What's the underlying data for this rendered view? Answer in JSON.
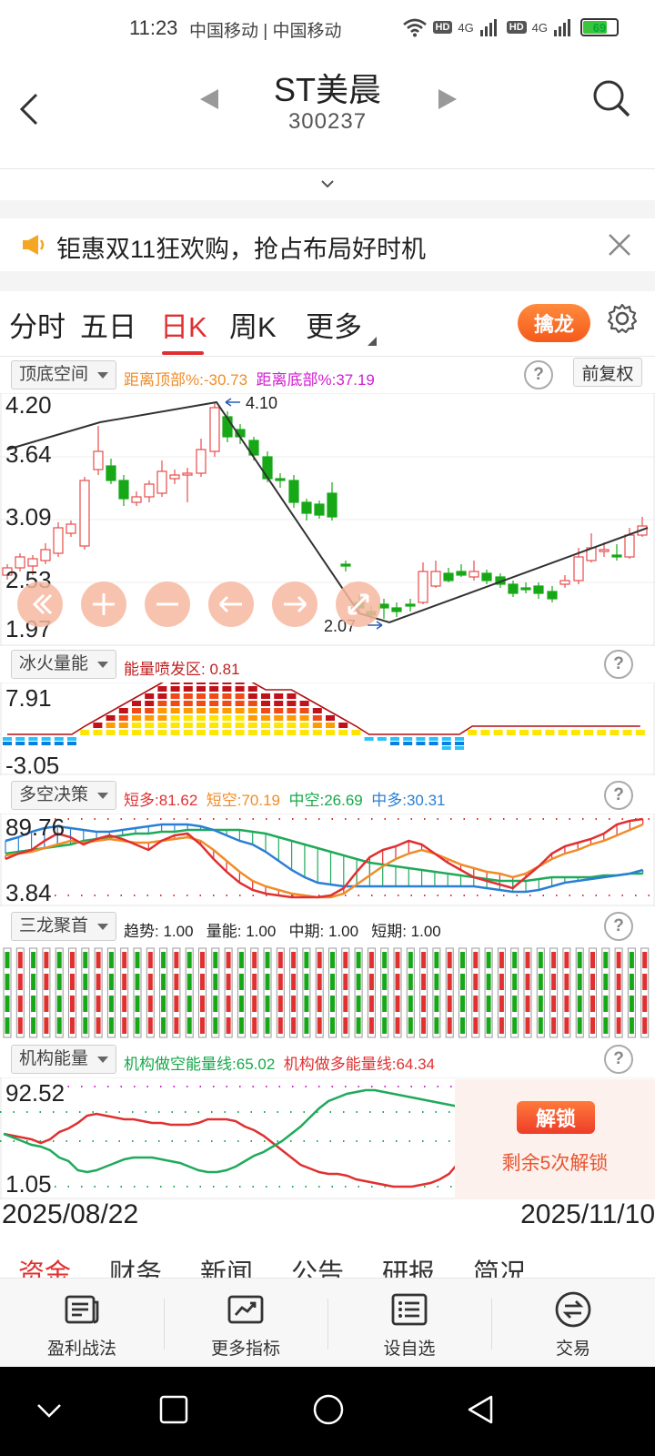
{
  "status": {
    "time": "11:23",
    "carrier": "中国移动 | 中国移动",
    "hd": "HD",
    "net": "4G",
    "battery": "69"
  },
  "header": {
    "title": "ST美晨",
    "code": "300237"
  },
  "banner": {
    "text": "钜惠双11狂欢购，抢占布局好时机"
  },
  "tabs": [
    {
      "label": "分时"
    },
    {
      "label": "五日"
    },
    {
      "label": "日K"
    },
    {
      "label": "周K"
    },
    {
      "label": "更多"
    }
  ],
  "qinlong_label": "擒龙",
  "main_indicator": {
    "name": "顶底空间",
    "top_label": "距离顶部%:",
    "top_value": "-30.73",
    "bottom_label": "距离底部%:",
    "bottom_value": "37.19",
    "fuquan": "前复权",
    "price_labels": [
      "4.20",
      "3.64",
      "3.09",
      "2.53",
      "1.97"
    ],
    "high_marker": "4.10",
    "low_marker": "2.07"
  },
  "energy": {
    "name": "冰火量能",
    "label": "能量喷发区:",
    "value": "0.81",
    "axis_top": "7.91",
    "axis_bottom": "-3.05"
  },
  "duokong": {
    "name": "多空决策",
    "items": [
      {
        "label": "短多:",
        "value": "81.62"
      },
      {
        "label": "短空:",
        "value": "70.19"
      },
      {
        "label": "中空:",
        "value": "26.69"
      },
      {
        "label": "中多:",
        "value": "30.31"
      }
    ],
    "axis_top": "89.76",
    "axis_bottom": "3.84"
  },
  "sanlong": {
    "name": "三龙聚首",
    "items": [
      {
        "label": "趋势:",
        "value": "1.00"
      },
      {
        "label": "量能:",
        "value": "1.00"
      },
      {
        "label": "中期:",
        "value": "1.00"
      },
      {
        "label": "短期:",
        "value": "1.00"
      }
    ]
  },
  "jigou": {
    "name": "机构能量",
    "kong_label": "机构做空能量线:",
    "kong_value": "65.02",
    "duo_label": "机构做多能量线:",
    "duo_value": "64.34",
    "axis_top": "92.52",
    "axis_bottom": "1.05",
    "unlock_button": "解锁",
    "unlock_text": "剩余5次解锁"
  },
  "dates": {
    "start": "2025/08/22",
    "end": "2025/11/10"
  },
  "subtabs": [
    {
      "label": "资金"
    },
    {
      "label": "财务"
    },
    {
      "label": "新闻"
    },
    {
      "label": "公告"
    },
    {
      "label": "研报"
    },
    {
      "label": "简况"
    }
  ],
  "toolbar": [
    {
      "label": "盈利战法",
      "icon": "news-icon"
    },
    {
      "label": "更多指标",
      "icon": "chart-icon"
    },
    {
      "label": "设自选",
      "icon": "list-icon"
    },
    {
      "label": "交易",
      "icon": "exchange-icon"
    }
  ],
  "colors": {
    "red": "#e03030",
    "green": "#17a817",
    "orange": "#f08c28",
    "magenta": "#d21ed2",
    "blue": "#2a7fd4"
  }
}
